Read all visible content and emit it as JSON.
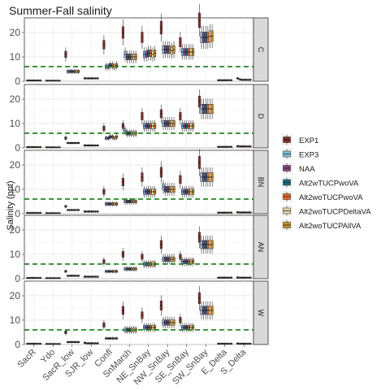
{
  "chart_data": {
    "type": "box",
    "title": "Summer-Fall salinity",
    "ylabel": "Salinity (ppt)",
    "xlabel": "",
    "ylim": [
      0,
      26
    ],
    "yticks": [
      0,
      10,
      20
    ],
    "reference_line": 6,
    "legend_position": "right",
    "categories": [
      "SacR",
      "Ydo",
      "SacR_low",
      "SJR_low",
      "Confl",
      "SnMarsh",
      "NE_SnBay",
      "NW_SnBay",
      "SE_SnBay",
      "SW_SnBay",
      "E_Delta",
      "S_Delta"
    ],
    "series": [
      {
        "name": "EXP1",
        "color": "#8b2e24"
      },
      {
        "name": "EXP3",
        "color": "#79c3e3"
      },
      {
        "name": "NAA",
        "color": "#8b3f8f"
      },
      {
        "name": "Alt2wTUCPwoVA",
        "color": "#0e6f8c"
      },
      {
        "name": "Alt2woTUCPwoVA",
        "color": "#ec6624"
      },
      {
        "name": "Alt2woTUCPDeltaVA",
        "color": "#e8d6a6"
      },
      {
        "name": "Alt2woTUCPAllVA",
        "color": "#c9941a"
      }
    ],
    "panels": [
      {
        "label": "C",
        "medians": [
          [
            0.3,
            0.3,
            0.3,
            0.3,
            0.3,
            0.3,
            0.3
          ],
          [
            0.2,
            0.2,
            0.2,
            0.2,
            0.2,
            0.2,
            0.2
          ],
          [
            11,
            4,
            4,
            4,
            4,
            4,
            4
          ],
          [
            1.2,
            1.2,
            1.2,
            1.2,
            1.2,
            1.2,
            1.2
          ],
          [
            15,
            6,
            6,
            6.5,
            6.5,
            6,
            6.5
          ],
          [
            20,
            11,
            10,
            10,
            10,
            10,
            10
          ],
          [
            18,
            11,
            11,
            11.5,
            11.5,
            11,
            11.5
          ],
          [
            22,
            13,
            13,
            13,
            13,
            12.5,
            13
          ],
          [
            16,
            12,
            12,
            12,
            12,
            12,
            12
          ],
          [
            25,
            18,
            18,
            18,
            18,
            18.5,
            18.5
          ],
          [
            0.4,
            0.4,
            0.4,
            0.4,
            0.4,
            0.4,
            0.4
          ],
          [
            1.2,
            0.8,
            0.6,
            0.6,
            0.6,
            0.6,
            0.6
          ]
        ]
      },
      {
        "label": "D",
        "medians": [
          [
            0.3,
            0.3,
            0.3,
            0.3,
            0.3,
            0.3,
            0.3
          ],
          [
            0.2,
            0.2,
            0.2,
            0.2,
            0.2,
            0.2,
            0.2
          ],
          [
            4,
            2,
            2,
            2,
            2,
            2,
            2
          ],
          [
            1,
            1,
            1,
            1,
            1,
            1,
            1
          ],
          [
            8,
            4,
            4,
            4.5,
            4.5,
            4,
            4.5
          ],
          [
            9,
            7,
            6,
            6,
            6,
            6,
            6
          ],
          [
            13,
            9,
            9,
            9,
            9,
            9,
            9
          ],
          [
            14,
            10,
            10,
            10,
            10,
            10,
            10
          ],
          [
            13,
            9,
            9,
            9,
            9,
            9,
            9
          ],
          [
            19,
            16,
            16,
            16,
            16,
            16,
            16
          ],
          [
            0.4,
            0.4,
            0.4,
            0.4,
            0.4,
            0.4,
            0.4
          ],
          [
            0.7,
            0.6,
            0.6,
            0.6,
            0.6,
            0.6,
            0.6
          ]
        ]
      },
      {
        "label": "BN",
        "medians": [
          [
            0.3,
            0.3,
            0.3,
            0.3,
            0.3,
            0.3,
            0.3
          ],
          [
            0.2,
            0.2,
            0.2,
            0.2,
            0.2,
            0.2,
            0.2
          ],
          [
            3,
            1.5,
            1.5,
            1.5,
            1.5,
            1.5,
            1.5
          ],
          [
            0.9,
            0.9,
            0.9,
            0.9,
            0.9,
            0.9,
            0.9
          ],
          [
            9,
            4,
            4,
            4,
            4,
            4,
            4
          ],
          [
            13,
            5,
            5,
            5,
            5,
            5,
            5
          ],
          [
            15,
            9,
            9,
            9,
            9,
            9,
            9
          ],
          [
            17,
            11,
            10,
            10,
            10,
            10,
            10
          ],
          [
            14,
            9,
            9,
            9,
            9,
            9,
            9
          ],
          [
            21,
            15,
            15,
            15,
            15,
            15,
            15
          ],
          [
            0.4,
            0.4,
            0.4,
            0.4,
            0.4,
            0.4,
            0.4
          ],
          [
            0.6,
            0.5,
            0.5,
            0.5,
            0.5,
            0.5,
            0.5
          ]
        ]
      },
      {
        "label": "AN",
        "medians": [
          [
            0.3,
            0.3,
            0.3,
            0.3,
            0.3,
            0.3,
            0.3
          ],
          [
            0.2,
            0.2,
            0.2,
            0.2,
            0.2,
            0.2,
            0.2
          ],
          [
            3,
            1.2,
            1.2,
            1.2,
            1.2,
            1.2,
            1.2
          ],
          [
            0.8,
            0.8,
            0.8,
            0.8,
            0.8,
            0.8,
            0.8
          ],
          [
            7,
            3,
            3,
            3,
            3,
            3,
            3
          ],
          [
            10,
            4,
            4,
            4,
            4,
            4,
            4
          ],
          [
            9,
            6,
            6,
            6,
            6,
            6,
            6
          ],
          [
            14,
            8,
            8,
            8,
            8,
            8,
            8
          ],
          [
            9,
            7,
            7,
            7,
            7,
            7,
            7
          ],
          [
            17,
            14,
            14,
            14,
            14,
            14,
            14
          ],
          [
            0.4,
            0.4,
            0.4,
            0.4,
            0.4,
            0.4,
            0.4
          ],
          [
            0.5,
            0.4,
            0.4,
            0.4,
            0.4,
            0.4,
            0.4
          ]
        ]
      },
      {
        "label": "W",
        "medians": [
          [
            0.3,
            0.3,
            0.3,
            0.3,
            0.3,
            0.3,
            0.3
          ],
          [
            0.2,
            0.2,
            0.2,
            0.2,
            0.2,
            0.2,
            0.2
          ],
          [
            5,
            1,
            1,
            1,
            1,
            1,
            1
          ],
          [
            0.7,
            0.5,
            0.5,
            0.5,
            0.5,
            0.5,
            0.5
          ],
          [
            8,
            2.5,
            2.5,
            2.5,
            2.5,
            2.5,
            2.5
          ],
          [
            14,
            6,
            6,
            6,
            6,
            6,
            6
          ],
          [
            12,
            7,
            7,
            7,
            7,
            7,
            7
          ],
          [
            16,
            9,
            9,
            9,
            9,
            9,
            9
          ],
          [
            10,
            7,
            7,
            7,
            7,
            7,
            7
          ],
          [
            19,
            14,
            14,
            14,
            14,
            14,
            14
          ],
          [
            0.3,
            0.3,
            0.3,
            0.3,
            0.3,
            0.3,
            0.3
          ],
          [
            0.4,
            0.3,
            0.3,
            0.3,
            0.3,
            0.3,
            0.3
          ]
        ]
      }
    ]
  }
}
